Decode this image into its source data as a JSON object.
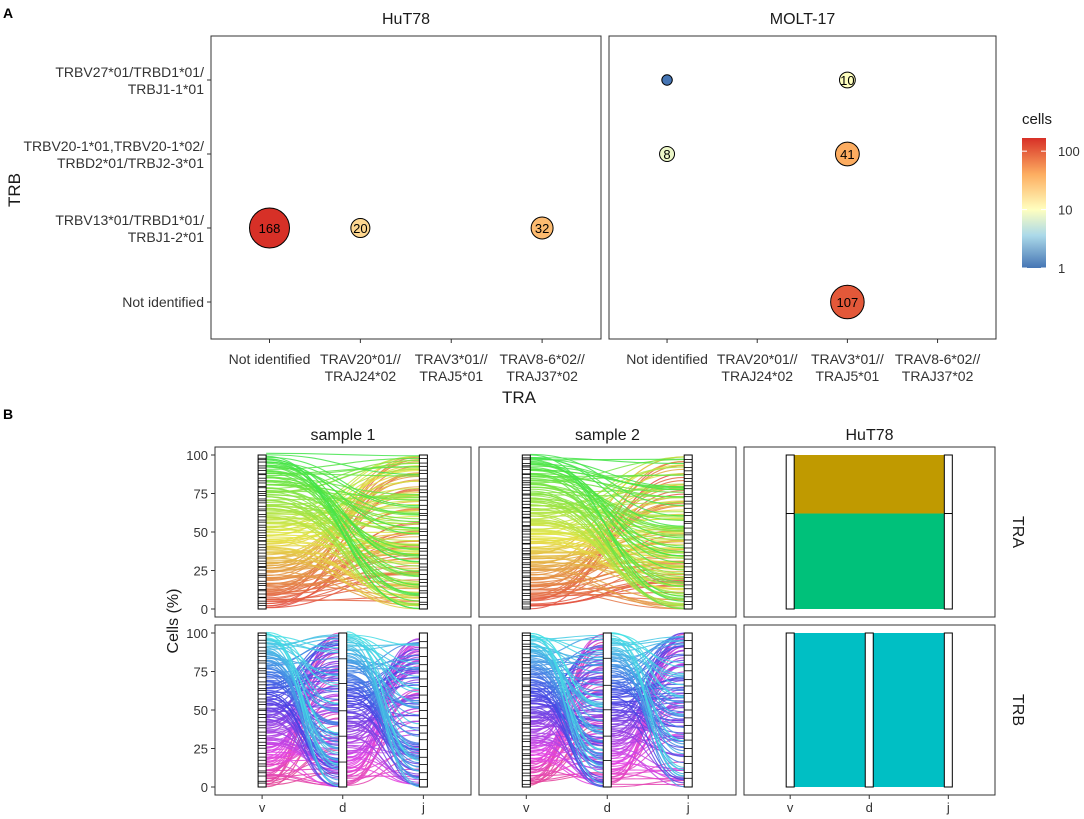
{
  "chart_data": [
    {
      "type": "scatter",
      "panel_letter": "A",
      "subtype": "bubble",
      "facets": [
        "HuT78",
        "MOLT-17"
      ],
      "xlabel": "TRA",
      "ylabel": "TRB",
      "x_categories": [
        [
          "Not identified"
        ],
        [
          "TRAV20*01//",
          "TRAJ24*02"
        ],
        [
          "TRAV3*01//",
          "TRAJ5*01"
        ],
        [
          "TRAV8-6*02//",
          "TRAJ37*02"
        ]
      ],
      "y_categories": [
        [
          "TRBV27*01/TRBD1*01/",
          "TRBJ1-1*01"
        ],
        [
          "TRBV20-1*01,TRBV20-1*02/",
          "TRBD2*01/TRBJ2-3*01"
        ],
        [
          "TRBV13*01/TRBD1*01/",
          "TRBJ1-2*01"
        ],
        [
          "Not identified"
        ]
      ],
      "points": [
        {
          "facet": 0,
          "x": 0,
          "y": 2,
          "cells": 168,
          "label": "168"
        },
        {
          "facet": 0,
          "x": 1,
          "y": 2,
          "cells": 20,
          "label": "20"
        },
        {
          "facet": 0,
          "x": 3,
          "y": 2,
          "cells": 32,
          "label": "32"
        },
        {
          "facet": 1,
          "x": 0,
          "y": 0,
          "cells": 1,
          "label": ""
        },
        {
          "facet": 1,
          "x": 2,
          "y": 0,
          "cells": 10,
          "label": "10"
        },
        {
          "facet": 1,
          "x": 0,
          "y": 1,
          "cells": 8,
          "label": "8"
        },
        {
          "facet": 1,
          "x": 2,
          "y": 1,
          "cells": 41,
          "label": "41"
        },
        {
          "facet": 1,
          "x": 2,
          "y": 3,
          "cells": 107,
          "label": "107"
        }
      ],
      "legend": {
        "title": "cells",
        "scale": "log10",
        "range": [
          1,
          168
        ],
        "ticks": [
          1,
          10,
          100
        ],
        "tick_labels": [
          "1",
          "10",
          "100"
        ],
        "colors": [
          "#4575b4",
          "#abd9e9",
          "#ffffbf",
          "#fdae61",
          "#d73027"
        ],
        "position": "right"
      }
    },
    {
      "type": "alluvial",
      "panel_letter": "B",
      "ylabel": "Cells (%)",
      "columns": [
        "sample 1",
        "sample 2",
        "HuT78"
      ],
      "rows": [
        "TRA",
        "TRB"
      ],
      "axes": {
        "TRA": [
          "v",
          "j"
        ],
        "TRB": [
          "v",
          "d",
          "j"
        ]
      },
      "x_tick_labels": [
        "v",
        "d",
        "j"
      ],
      "y_ticks": [
        0,
        25,
        50,
        75,
        100
      ],
      "ylim": [
        0,
        100
      ],
      "hut78_TRA_flows": [
        {
          "share": 38,
          "color": "#c09a00"
        },
        {
          "share": 62,
          "color": "#00c17a"
        }
      ],
      "hut78_TRA_color": "#00c17a",
      "hut78_TRB_flows": [
        {
          "share": 100,
          "color": "#00bfc4"
        }
      ]
    }
  ]
}
